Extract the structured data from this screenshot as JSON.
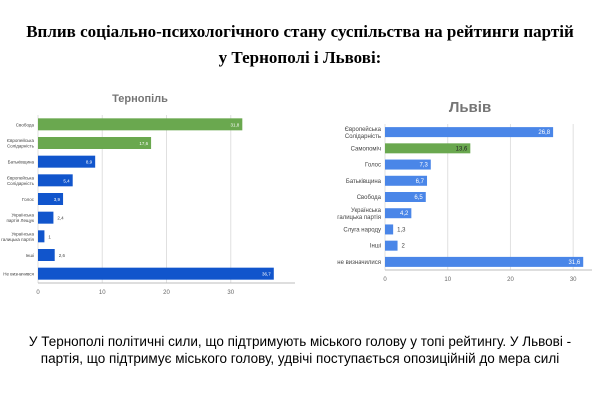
{
  "slide": {
    "title_line1": "Вплив соціально-психологічного стану суспільства на рейтинги партій",
    "title_line2": "у Тернополі і Львові:",
    "caption": "У Тернополі політичні сили, що підтримують міського голову у топі рейтингу. У Львові - партія, що підтримує міського голову,  удвічі поступається опозиційній до мера силі"
  },
  "colors": {
    "green": "#6aa84f",
    "blue": "#1155cc",
    "blue_light": "#4a86e8",
    "grid": "#e0e0e0",
    "label": "#666666"
  },
  "chart_data": [
    {
      "type": "bar",
      "orientation": "horizontal",
      "title": "Тернопіль",
      "categories": [
        "Свобода",
        "Європейська Солідарність",
        "Батьківщина",
        "Європейська Солідарність",
        "Голос",
        "Українська партія Лещук",
        "Українська галицька партія",
        "Інші",
        "Не визначився"
      ],
      "values": [
        31.8,
        17.6,
        8.9,
        5.4,
        3.9,
        2.4,
        1.0,
        2.6,
        36.7
      ],
      "bar_colors": [
        "#6aa84f",
        "#6aa84f",
        "#1155cc",
        "#1155cc",
        "#1155cc",
        "#1155cc",
        "#1155cc",
        "#1155cc",
        "#1155cc"
      ],
      "value_labels": [
        "31,8",
        "17,6",
        "8,9",
        "5,4",
        "3,9",
        "2,4",
        "1",
        "2,6",
        "36,7"
      ],
      "x_ticks": [
        "0",
        "10",
        "20",
        "30"
      ],
      "xlim": [
        0,
        40
      ],
      "grid": true
    },
    {
      "type": "bar",
      "orientation": "horizontal",
      "title": "Львів",
      "categories": [
        "Європейська Солідарність",
        "Самопоміч",
        "Голос",
        "Батьківщина",
        "Свобода",
        "Українська галицька партія",
        "Слуга народу",
        "Інші",
        "не визначилися"
      ],
      "values": [
        26.8,
        13.6,
        7.3,
        6.7,
        6.5,
        4.2,
        1.3,
        2.0,
        31.6
      ],
      "bar_colors": [
        "#4a86e8",
        "#6aa84f",
        "#4a86e8",
        "#4a86e8",
        "#4a86e8",
        "#4a86e8",
        "#4a86e8",
        "#4a86e8",
        "#4a86e8"
      ],
      "value_labels": [
        "26,8",
        "13,6",
        "7,3",
        "6,7",
        "6,5",
        "4,2",
        "1,3",
        "2",
        "31,6"
      ],
      "x_ticks": [
        "0",
        "10",
        "20",
        "30"
      ],
      "xlim": [
        0,
        33
      ],
      "grid": true
    }
  ]
}
